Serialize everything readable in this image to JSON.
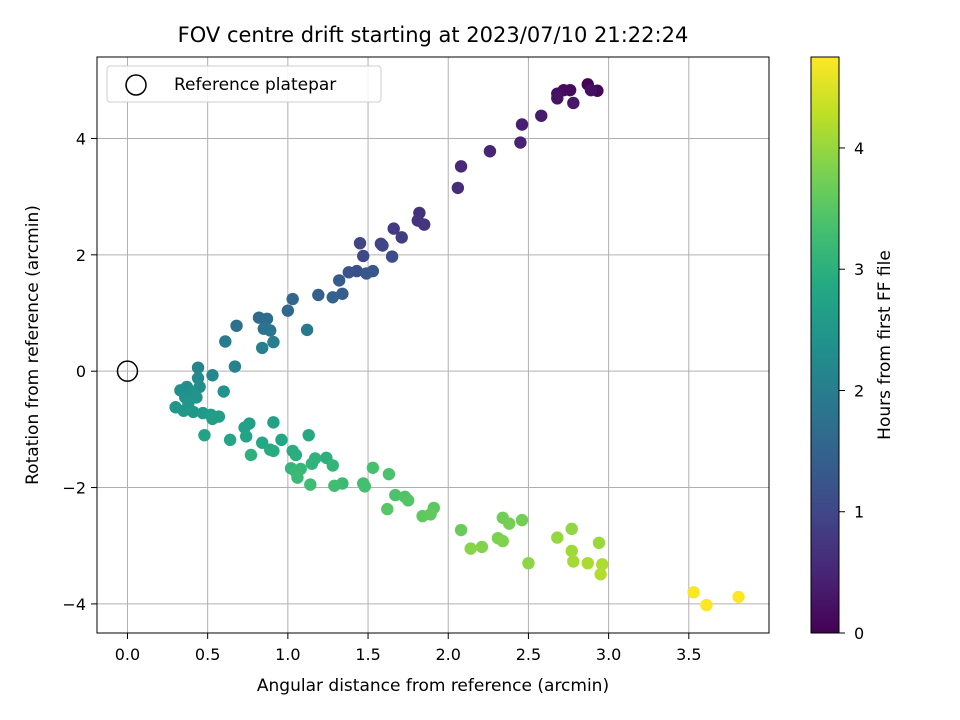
{
  "chart_data": {
    "type": "scatter",
    "title": "FOV centre drift starting at 2023/07/10 21:22:24",
    "xlabel": "Angular distance from reference (arcmin)",
    "ylabel": "Rotation from reference (arcmin)",
    "xlim": [
      -0.19,
      4.0
    ],
    "ylim": [
      -4.5,
      5.4
    ],
    "xticks": [
      0.0,
      0.5,
      1.0,
      1.5,
      2.0,
      2.5,
      3.0,
      3.5
    ],
    "xtick_labels": [
      "0.0",
      "0.5",
      "1.0",
      "1.5",
      "2.0",
      "2.5",
      "3.0",
      "3.5"
    ],
    "yticks": [
      -4,
      -2,
      0,
      2,
      4
    ],
    "ytick_labels": [
      "−4",
      "−2",
      "0",
      "2",
      "4"
    ],
    "grid": true,
    "legend": {
      "location": "upper-left",
      "entries": [
        {
          "label": "Reference platepar",
          "marker": "hollow-circle",
          "color": "#000000"
        }
      ]
    },
    "reference_point": {
      "x": 0.0,
      "y": 0.0
    },
    "colorbar": {
      "label": "Hours from first FF file",
      "colormap": "viridis",
      "range": [
        0,
        4.75
      ],
      "ticks": [
        0,
        1,
        2,
        3,
        4
      ],
      "tick_labels": [
        "0",
        "1",
        "2",
        "3",
        "4"
      ]
    },
    "points": [
      {
        "x": 2.87,
        "y": 4.93,
        "c": 0.05
      },
      {
        "x": 2.93,
        "y": 4.82,
        "c": 0.08
      },
      {
        "x": 2.76,
        "y": 4.83,
        "c": 0.12
      },
      {
        "x": 2.72,
        "y": 4.83,
        "c": 0.15
      },
      {
        "x": 2.68,
        "y": 4.77,
        "c": 0.18
      },
      {
        "x": 2.89,
        "y": 4.83,
        "c": 0.2
      },
      {
        "x": 2.68,
        "y": 4.69,
        "c": 0.25
      },
      {
        "x": 2.78,
        "y": 4.61,
        "c": 0.3
      },
      {
        "x": 2.58,
        "y": 4.39,
        "c": 0.35
      },
      {
        "x": 2.46,
        "y": 4.24,
        "c": 0.4
      },
      {
        "x": 2.45,
        "y": 3.93,
        "c": 0.45
      },
      {
        "x": 2.26,
        "y": 3.78,
        "c": 0.5
      },
      {
        "x": 2.08,
        "y": 3.52,
        "c": 0.55
      },
      {
        "x": 2.06,
        "y": 3.15,
        "c": 0.6
      },
      {
        "x": 1.82,
        "y": 2.72,
        "c": 0.65
      },
      {
        "x": 1.81,
        "y": 2.59,
        "c": 0.7
      },
      {
        "x": 1.85,
        "y": 2.52,
        "c": 0.75
      },
      {
        "x": 1.66,
        "y": 2.45,
        "c": 0.8
      },
      {
        "x": 1.71,
        "y": 2.3,
        "c": 0.85
      },
      {
        "x": 1.58,
        "y": 2.19,
        "c": 0.9
      },
      {
        "x": 1.45,
        "y": 2.2,
        "c": 0.95
      },
      {
        "x": 1.59,
        "y": 2.16,
        "c": 1.0
      },
      {
        "x": 1.47,
        "y": 1.98,
        "c": 1.05
      },
      {
        "x": 1.65,
        "y": 1.97,
        "c": 1.1
      },
      {
        "x": 1.43,
        "y": 1.72,
        "c": 1.15
      },
      {
        "x": 1.38,
        "y": 1.7,
        "c": 1.2
      },
      {
        "x": 1.53,
        "y": 1.72,
        "c": 1.25
      },
      {
        "x": 1.49,
        "y": 1.68,
        "c": 1.3
      },
      {
        "x": 1.32,
        "y": 1.56,
        "c": 1.35
      },
      {
        "x": 1.34,
        "y": 1.33,
        "c": 1.4
      },
      {
        "x": 1.19,
        "y": 1.31,
        "c": 1.45
      },
      {
        "x": 1.28,
        "y": 1.27,
        "c": 1.5
      },
      {
        "x": 1.03,
        "y": 1.24,
        "c": 1.55
      },
      {
        "x": 1.0,
        "y": 1.04,
        "c": 1.6
      },
      {
        "x": 0.82,
        "y": 0.92,
        "c": 1.65
      },
      {
        "x": 0.87,
        "y": 0.9,
        "c": 1.7
      },
      {
        "x": 0.68,
        "y": 0.78,
        "c": 1.75
      },
      {
        "x": 0.85,
        "y": 0.73,
        "c": 1.8
      },
      {
        "x": 0.89,
        "y": 0.7,
        "c": 1.85
      },
      {
        "x": 1.12,
        "y": 0.71,
        "c": 1.9
      },
      {
        "x": 0.61,
        "y": 0.51,
        "c": 1.95
      },
      {
        "x": 0.91,
        "y": 0.5,
        "c": 2.0
      },
      {
        "x": 0.84,
        "y": 0.4,
        "c": 2.05
      },
      {
        "x": 0.67,
        "y": 0.08,
        "c": 2.1
      },
      {
        "x": 0.44,
        "y": 0.06,
        "c": 2.15
      },
      {
        "x": 0.53,
        "y": -0.07,
        "c": 2.2
      },
      {
        "x": 0.44,
        "y": -0.12,
        "c": 2.25
      },
      {
        "x": 0.37,
        "y": -0.27,
        "c": 2.3
      },
      {
        "x": 0.45,
        "y": -0.27,
        "c": 2.32
      },
      {
        "x": 0.33,
        "y": -0.33,
        "c": 2.35
      },
      {
        "x": 0.4,
        "y": -0.35,
        "c": 2.38
      },
      {
        "x": 0.6,
        "y": -0.35,
        "c": 2.4
      },
      {
        "x": 0.36,
        "y": -0.45,
        "c": 2.42
      },
      {
        "x": 0.43,
        "y": -0.45,
        "c": 2.45
      },
      {
        "x": 0.38,
        "y": -0.55,
        "c": 2.48
      },
      {
        "x": 0.3,
        "y": -0.62,
        "c": 2.5
      },
      {
        "x": 0.35,
        "y": -0.68,
        "c": 2.52
      },
      {
        "x": 0.41,
        "y": -0.7,
        "c": 2.55
      },
      {
        "x": 0.47,
        "y": -0.72,
        "c": 2.58
      },
      {
        "x": 0.52,
        "y": -0.75,
        "c": 2.6
      },
      {
        "x": 0.57,
        "y": -0.78,
        "c": 2.62
      },
      {
        "x": 0.53,
        "y": -0.82,
        "c": 2.65
      },
      {
        "x": 0.76,
        "y": -0.9,
        "c": 2.68
      },
      {
        "x": 0.91,
        "y": -0.88,
        "c": 2.7
      },
      {
        "x": 0.73,
        "y": -0.97,
        "c": 2.72
      },
      {
        "x": 0.48,
        "y": -1.1,
        "c": 2.75
      },
      {
        "x": 0.74,
        "y": -1.12,
        "c": 2.78
      },
      {
        "x": 0.64,
        "y": -1.18,
        "c": 2.8
      },
      {
        "x": 0.96,
        "y": -1.18,
        "c": 2.83
      },
      {
        "x": 0.84,
        "y": -1.23,
        "c": 2.85
      },
      {
        "x": 1.13,
        "y": -1.1,
        "c": 2.88
      },
      {
        "x": 0.89,
        "y": -1.35,
        "c": 2.9
      },
      {
        "x": 0.91,
        "y": -1.37,
        "c": 2.92
      },
      {
        "x": 1.03,
        "y": -1.37,
        "c": 2.95
      },
      {
        "x": 1.05,
        "y": -1.44,
        "c": 2.98
      },
      {
        "x": 0.77,
        "y": -1.44,
        "c": 3.0
      },
      {
        "x": 1.24,
        "y": -1.49,
        "c": 3.02
      },
      {
        "x": 1.17,
        "y": -1.5,
        "c": 3.05
      },
      {
        "x": 1.15,
        "y": -1.59,
        "c": 3.08
      },
      {
        "x": 1.28,
        "y": -1.62,
        "c": 3.1
      },
      {
        "x": 1.02,
        "y": -1.67,
        "c": 3.12
      },
      {
        "x": 1.08,
        "y": -1.68,
        "c": 3.15
      },
      {
        "x": 1.05,
        "y": -1.73,
        "c": 3.18
      },
      {
        "x": 1.06,
        "y": -1.83,
        "c": 3.2
      },
      {
        "x": 1.34,
        "y": -1.93,
        "c": 3.22
      },
      {
        "x": 1.14,
        "y": -1.95,
        "c": 3.25
      },
      {
        "x": 1.29,
        "y": -1.97,
        "c": 3.28
      },
      {
        "x": 1.47,
        "y": -1.93,
        "c": 3.3
      },
      {
        "x": 1.48,
        "y": -1.98,
        "c": 3.32
      },
      {
        "x": 1.53,
        "y": -1.66,
        "c": 3.35
      },
      {
        "x": 1.63,
        "y": -1.77,
        "c": 3.38
      },
      {
        "x": 1.67,
        "y": -2.13,
        "c": 3.4
      },
      {
        "x": 1.73,
        "y": -2.16,
        "c": 3.43
      },
      {
        "x": 1.75,
        "y": -2.22,
        "c": 3.46
      },
      {
        "x": 1.62,
        "y": -2.37,
        "c": 3.5
      },
      {
        "x": 1.91,
        "y": -2.35,
        "c": 3.53
      },
      {
        "x": 1.84,
        "y": -2.49,
        "c": 3.56
      },
      {
        "x": 1.89,
        "y": -2.46,
        "c": 3.6
      },
      {
        "x": 2.08,
        "y": -2.73,
        "c": 3.65
      },
      {
        "x": 2.34,
        "y": -2.52,
        "c": 3.7
      },
      {
        "x": 2.46,
        "y": -2.56,
        "c": 3.73
      },
      {
        "x": 2.38,
        "y": -2.62,
        "c": 3.76
      },
      {
        "x": 2.31,
        "y": -2.87,
        "c": 3.8
      },
      {
        "x": 2.34,
        "y": -2.92,
        "c": 3.83
      },
      {
        "x": 2.21,
        "y": -3.02,
        "c": 3.86
      },
      {
        "x": 2.14,
        "y": -3.05,
        "c": 3.9
      },
      {
        "x": 2.5,
        "y": -3.3,
        "c": 3.93
      },
      {
        "x": 2.77,
        "y": -2.71,
        "c": 3.96
      },
      {
        "x": 2.68,
        "y": -2.86,
        "c": 4.0
      },
      {
        "x": 2.94,
        "y": -2.95,
        "c": 4.03
      },
      {
        "x": 2.77,
        "y": -3.09,
        "c": 4.06
      },
      {
        "x": 2.78,
        "y": -3.27,
        "c": 4.1
      },
      {
        "x": 2.87,
        "y": -3.3,
        "c": 4.13
      },
      {
        "x": 2.96,
        "y": -3.32,
        "c": 4.16
      },
      {
        "x": 2.95,
        "y": -3.49,
        "c": 4.2
      },
      {
        "x": 3.53,
        "y": -3.8,
        "c": 4.72
      },
      {
        "x": 3.61,
        "y": -4.02,
        "c": 4.74
      },
      {
        "x": 3.81,
        "y": -3.88,
        "c": 4.75
      }
    ]
  }
}
